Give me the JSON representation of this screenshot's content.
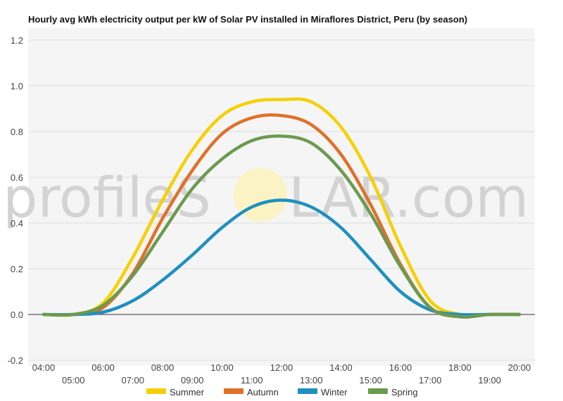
{
  "watermark": {
    "left_text": "profileS",
    "right_text": "LAR.com"
  },
  "chart_data": {
    "type": "line",
    "title": "Hourly avg kWh electricity output per kW of Solar PV installed in Miraflores District, Peru (by season)",
    "xlabel": "",
    "ylabel": "",
    "ylim": [
      -0.2,
      1.2
    ],
    "yticks": [
      "-0.2",
      "0.0",
      "0.2",
      "0.4",
      "0.6",
      "0.8",
      "1.0",
      "1.2"
    ],
    "categories": [
      "04:00",
      "05:00",
      "06:00",
      "07:00",
      "08:00",
      "09:00",
      "10:00",
      "11:00",
      "12:00",
      "13:00",
      "14:00",
      "15:00",
      "16:00",
      "17:00",
      "18:00",
      "19:00",
      "20:00"
    ],
    "grid": true,
    "legend": "bottom",
    "series": [
      {
        "name": "Summer",
        "color": "#f5d000",
        "values": [
          0.0,
          0.0,
          0.05,
          0.25,
          0.5,
          0.72,
          0.87,
          0.93,
          0.94,
          0.93,
          0.82,
          0.6,
          0.3,
          0.06,
          0.0,
          0.0,
          0.0
        ]
      },
      {
        "name": "Autumn",
        "color": "#e07028",
        "values": [
          0.0,
          0.0,
          0.03,
          0.18,
          0.42,
          0.63,
          0.79,
          0.86,
          0.87,
          0.83,
          0.7,
          0.48,
          0.22,
          0.03,
          -0.01,
          0.0,
          0.0
        ]
      },
      {
        "name": "Winter",
        "color": "#1e90c0",
        "values": [
          0.0,
          0.0,
          0.01,
          0.06,
          0.15,
          0.26,
          0.38,
          0.47,
          0.5,
          0.47,
          0.38,
          0.24,
          0.1,
          0.02,
          0.0,
          0.0,
          0.0
        ]
      },
      {
        "name": "Spring",
        "color": "#6b9a50",
        "values": [
          0.0,
          0.0,
          0.04,
          0.17,
          0.36,
          0.55,
          0.68,
          0.76,
          0.78,
          0.75,
          0.63,
          0.44,
          0.21,
          0.03,
          -0.01,
          0.0,
          0.0
        ]
      }
    ]
  }
}
